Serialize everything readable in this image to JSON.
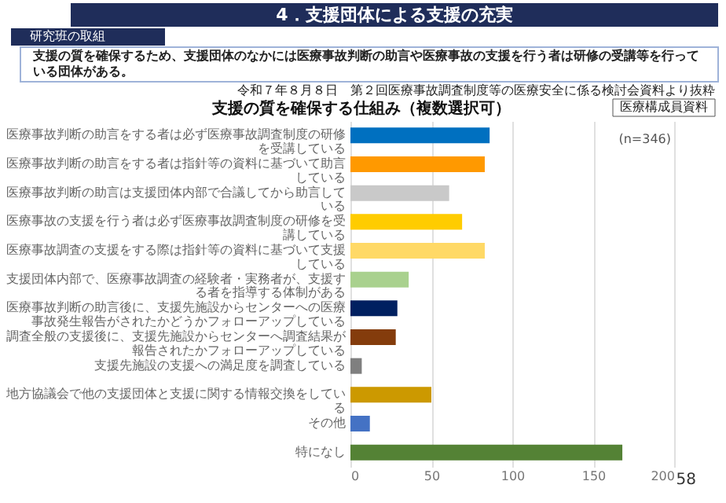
{
  "chart_data": {
    "type": "bar",
    "orientation": "horizontal",
    "title": "4．支援団体による支援の充実",
    "subtitle": "支援の質を確保する仕組み（複数選択可）",
    "annotations": [
      "研究班の取組",
      "支援の質を確保するため、支援団体のなかには医療事故判断の助言や医療事故の支援を行う者は研修の受講等を行っている団体がある。",
      "令和７年８月８日　第２回医療事故調査制度等の医療安全に係る検討会資料より抜粋",
      "医療構成員資料",
      "(n=346)",
      "58"
    ],
    "categories": [
      "医療事故判断の助言をする者は必ず医療事故調査制度の研修を受講している",
      "医療事故判断の助言をする者は指針等の資料に基づいて助言している",
      "医療事故判断の助言は支援団体内部で合議してから助言している",
      "医療事故の支援を行う者は必ず医療事故調査制度の研修を受講している",
      "医療事故調査の支援をする際は指針等の資料に基づいて支援している",
      "支援団体内部で、医療事故調査の経験者・実務者が、支援する者を指導する体制がある",
      "医療事故判断の助言後に、支援先施設からセンターへの医療事故発生報告がされたかどうかフォローアップしている",
      "調査全般の支援後に、支援先施設からセンターへ調査結果が報告されたかフォローアップしている",
      "支援先施設の支援への満足度を調査している",
      "地方協議会で他の支援団体と支援に関する情報交換をしている",
      "その他",
      "特になし"
    ],
    "values": [
      86,
      83,
      61,
      69,
      83,
      36,
      29,
      28,
      7,
      50,
      12,
      168
    ],
    "colors": [
      "#0070c0",
      "#ff9900",
      "#c9c9c9",
      "#ffcc00",
      "#ffd966",
      "#a9d18e",
      "#002060",
      "#843c0c",
      "#7f7f7f",
      "#cc9900",
      "#4472c4",
      "#548235"
    ],
    "xlim": [
      0,
      200
    ],
    "xticks": [
      0,
      50,
      100,
      150,
      200
    ],
    "grid": "x"
  }
}
